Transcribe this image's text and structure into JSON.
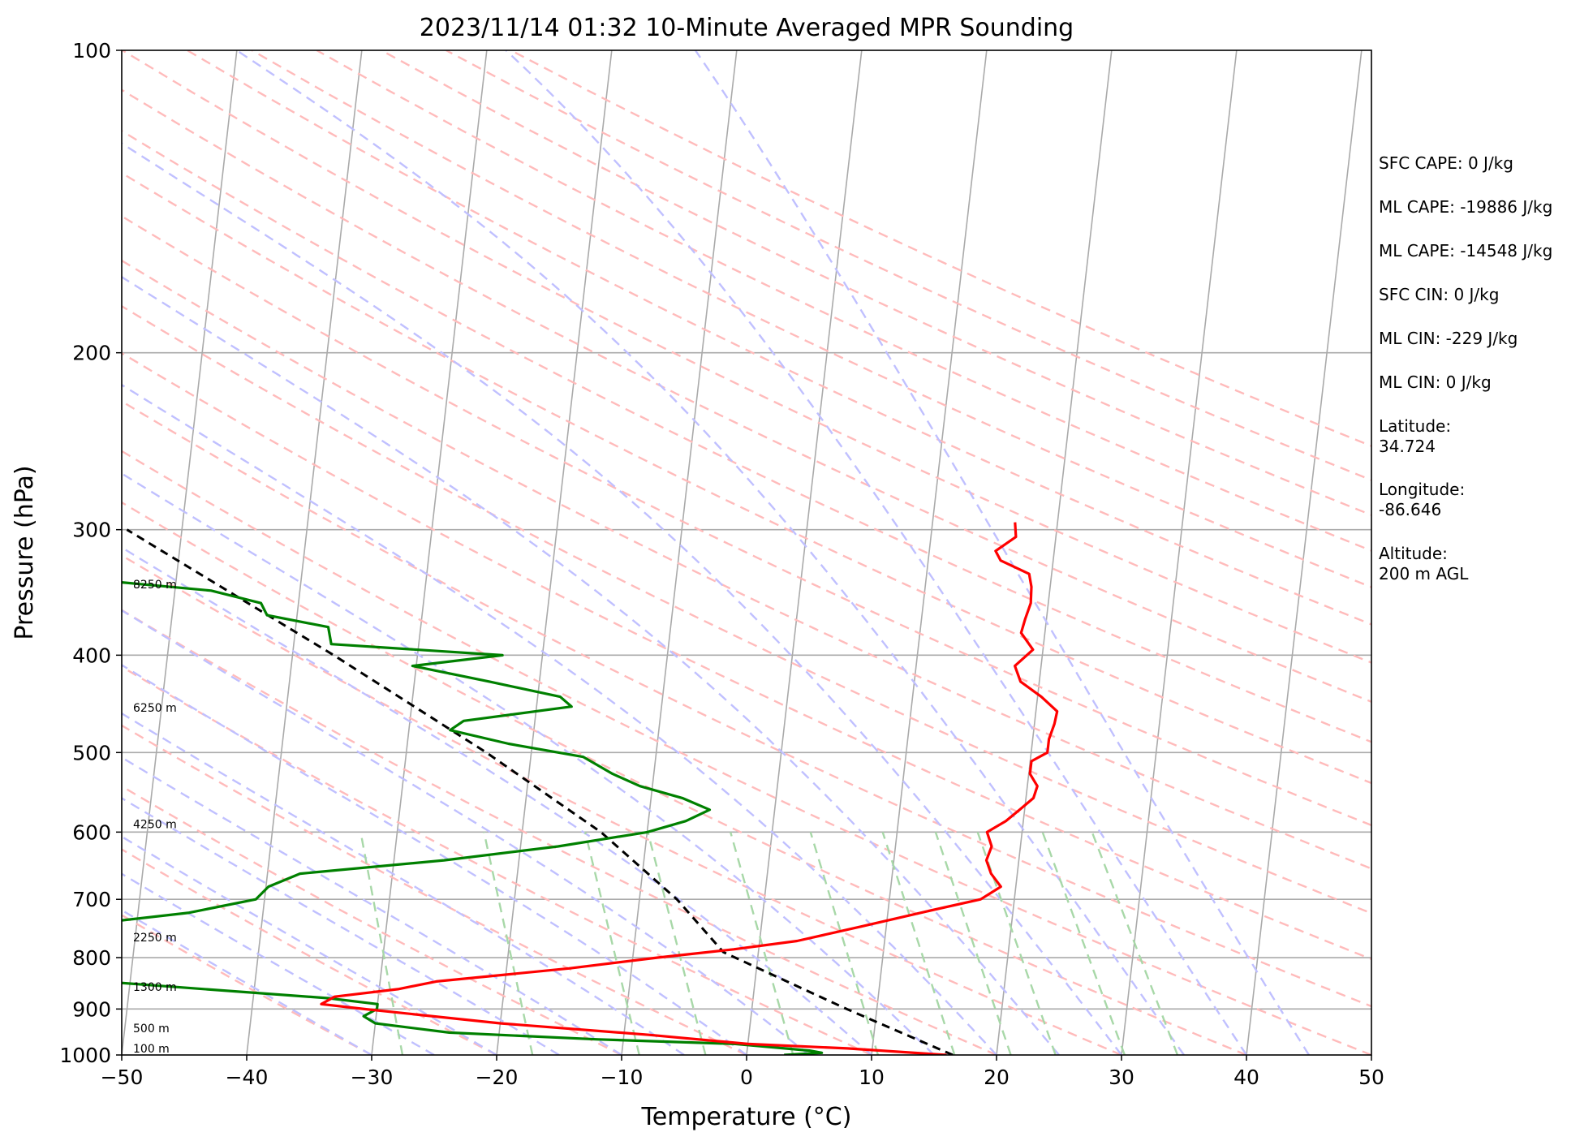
{
  "chart_data": {
    "type": "skew-t",
    "title": "2023/11/14 01:32 10-Minute Averaged MPR Sounding",
    "xlabel": "Temperature (°C)",
    "ylabel": "Pressure (hPa)",
    "xlim": [
      -50,
      50
    ],
    "ylim": [
      1000,
      100
    ],
    "y_scale": "log",
    "x_ticks": [
      -50,
      -40,
      -30,
      -20,
      -10,
      0,
      10,
      20,
      30,
      40,
      50
    ],
    "x_tick_labels": [
      "−50",
      "−40",
      "−30",
      "−20",
      "−10",
      "0",
      "10",
      "20",
      "30",
      "40",
      "50"
    ],
    "y_ticks": [
      1000,
      900,
      800,
      700,
      600,
      500,
      400,
      300,
      200,
      100
    ],
    "y_tick_labels": [
      "1000",
      "900",
      "800",
      "700",
      "600",
      "500",
      "400",
      "300",
      "200",
      "100"
    ],
    "grid": true,
    "colors": {
      "temperature": "#ff0000",
      "dewpoint": "#008000",
      "parcel": "#000000",
      "isotherm": "#aaaaaa",
      "dry_adiabat": "#ffbbbb",
      "moist_adiabat": "#c0c0ff",
      "mixing_ratio": "#a8d8a8"
    },
    "series": [
      {
        "role": "temperature",
        "points": [
          {
            "p": 1000,
            "t": 16
          },
          {
            "p": 985,
            "t": 8
          },
          {
            "p": 975,
            "t": 0
          },
          {
            "p": 955,
            "t": -8
          },
          {
            "p": 930,
            "t": -20
          },
          {
            "p": 900,
            "t": -31
          },
          {
            "p": 890,
            "t": -34.5
          },
          {
            "p": 875,
            "t": -33.5
          },
          {
            "p": 860,
            "t": -28.5
          },
          {
            "p": 845,
            "t": -25.5
          },
          {
            "p": 820,
            "t": -15
          },
          {
            "p": 800,
            "t": -8
          },
          {
            "p": 785,
            "t": -2
          },
          {
            "p": 770,
            "t": 3
          },
          {
            "p": 745,
            "t": 8
          },
          {
            "p": 720,
            "t": 13
          },
          {
            "p": 700,
            "t": 17.3
          },
          {
            "p": 680,
            "t": 18.8
          },
          {
            "p": 660,
            "t": 17.9
          },
          {
            "p": 640,
            "t": 17.4
          },
          {
            "p": 620,
            "t": 17.7
          },
          {
            "p": 600,
            "t": 17.2
          },
          {
            "p": 585,
            "t": 18.6
          },
          {
            "p": 570,
            "t": 19.6
          },
          {
            "p": 555,
            "t": 20.6
          },
          {
            "p": 540,
            "t": 20.8
          },
          {
            "p": 525,
            "t": 20.1
          },
          {
            "p": 510,
            "t": 20.1
          },
          {
            "p": 500,
            "t": 21.3
          },
          {
            "p": 485,
            "t": 21.3
          },
          {
            "p": 468,
            "t": 21.6
          },
          {
            "p": 455,
            "t": 21.7
          },
          {
            "p": 440,
            "t": 20.3
          },
          {
            "p": 425,
            "t": 18.5
          },
          {
            "p": 410,
            "t": 17.9
          },
          {
            "p": 395,
            "t": 19.2
          },
          {
            "p": 380,
            "t": 18.1
          },
          {
            "p": 368,
            "t": 18.3
          },
          {
            "p": 355,
            "t": 18.6
          },
          {
            "p": 342,
            "t": 18.5
          },
          {
            "p": 332,
            "t": 18.2
          },
          {
            "p": 322,
            "t": 15.8
          },
          {
            "p": 315,
            "t": 15.3
          },
          {
            "p": 305,
            "t": 16.8
          },
          {
            "p": 295,
            "t": 16.6
          }
        ]
      },
      {
        "role": "dewpoint",
        "points": [
          {
            "p": 1000,
            "t": 3
          },
          {
            "p": 995,
            "t": 6
          },
          {
            "p": 990,
            "t": 5
          },
          {
            "p": 975,
            "t": -1
          },
          {
            "p": 965,
            "t": -12
          },
          {
            "p": 950,
            "t": -24
          },
          {
            "p": 930,
            "t": -30
          },
          {
            "p": 915,
            "t": -31
          },
          {
            "p": 900,
            "t": -30
          },
          {
            "p": 890,
            "t": -30
          },
          {
            "p": 878,
            "t": -34
          },
          {
            "p": 858,
            "t": -45
          },
          {
            "p": 840,
            "t": -55
          },
          {
            "p": 760,
            "t": -70
          },
          {
            "p": 740,
            "t": -53.5
          },
          {
            "p": 722,
            "t": -46
          },
          {
            "p": 700,
            "t": -40.7
          },
          {
            "p": 680,
            "t": -39.8
          },
          {
            "p": 660,
            "t": -37.4
          },
          {
            "p": 640,
            "t": -26
          },
          {
            "p": 620,
            "t": -17
          },
          {
            "p": 600,
            "t": -10
          },
          {
            "p": 585,
            "t": -7
          },
          {
            "p": 570,
            "t": -5.2
          },
          {
            "p": 555,
            "t": -7.5
          },
          {
            "p": 540,
            "t": -11
          },
          {
            "p": 525,
            "t": -13.3
          },
          {
            "p": 505,
            "t": -15.8
          },
          {
            "p": 490,
            "t": -21.9
          },
          {
            "p": 475,
            "t": -26.7
          },
          {
            "p": 465,
            "t": -25.7
          },
          {
            "p": 450,
            "t": -17.2
          },
          {
            "p": 440,
            "t": -18.2
          },
          {
            "p": 425,
            "t": -24
          },
          {
            "p": 410,
            "t": -30.3
          },
          {
            "p": 400,
            "t": -23.2
          },
          {
            "p": 390,
            "t": -37
          },
          {
            "p": 375,
            "t": -37.4
          },
          {
            "p": 365,
            "t": -42.4
          },
          {
            "p": 355,
            "t": -43
          },
          {
            "p": 345,
            "t": -47.1
          },
          {
            "p": 335,
            "t": -58.3
          },
          {
            "p": 325,
            "t": -71
          },
          {
            "p": 320,
            "t": -80
          }
        ]
      },
      {
        "role": "parcel",
        "points": [
          {
            "p": 1000,
            "t": 16.5
          },
          {
            "p": 900,
            "t": 7.6
          },
          {
            "p": 790,
            "t": -2.8
          },
          {
            "p": 700,
            "t": -7
          },
          {
            "p": 600,
            "t": -13.7
          },
          {
            "p": 500,
            "t": -23.6
          },
          {
            "p": 400,
            "t": -36.7
          },
          {
            "p": 300,
            "t": -54.4
          }
        ]
      }
    ],
    "height_labels": [
      {
        "label": "100 m",
        "p": 1000
      },
      {
        "label": "500 m",
        "p": 955
      },
      {
        "label": "1300 m",
        "p": 868
      },
      {
        "label": "2250 m",
        "p": 775
      },
      {
        "label": "4250 m",
        "p": 598
      },
      {
        "label": "6250 m",
        "p": 458
      },
      {
        "label": "8250 m",
        "p": 345
      }
    ],
    "annotations": [
      "SFC CAPE: 0 J/kg",
      "ML CAPE: -19886 J/kg",
      "ML CAPE: -14548 J/kg",
      "SFC CIN: 0 J/kg",
      "ML CIN: -229 J/kg",
      "ML CIN: 0 J/kg",
      "Latitude:",
      "34.724",
      "Longitude:",
      "-86.646",
      "Altitude:",
      "200 m AGL"
    ]
  }
}
